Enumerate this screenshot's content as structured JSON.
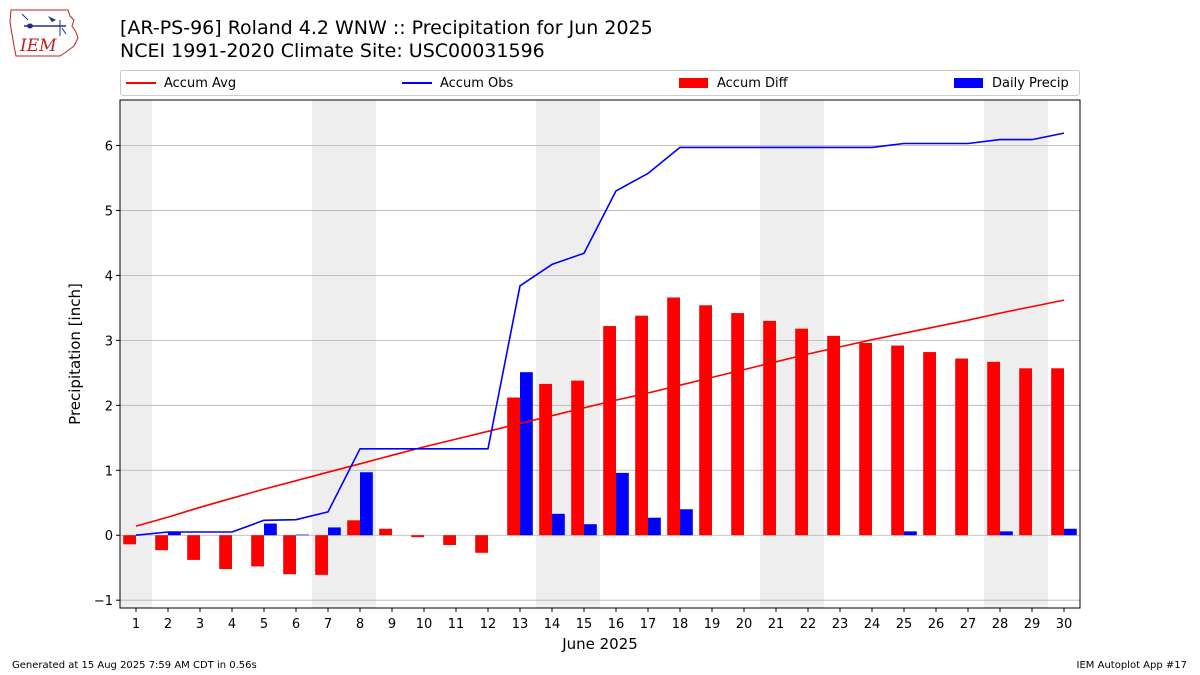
{
  "logo": {
    "text": "IEM"
  },
  "header": {
    "title_line1": "[AR-PS-96] Roland 4.2 WNW :: Precipitation for Jun 2025",
    "title_line2": "NCEI 1991-2020 Climate Site: USC00031596"
  },
  "footer": {
    "generated": "Generated at 15 Aug 2025 7:59 AM CDT in 0.56s",
    "app": "IEM Autoplot App #17"
  },
  "colors": {
    "accum_avg": "#ff0000",
    "accum_obs": "#0000ff",
    "accum_diff": "#ff0000",
    "daily_precip": "#0000ff",
    "weekend_band": "#eeeeee",
    "grid": "#b0b0b0"
  },
  "chart_data": {
    "type": "bar",
    "xlabel": "June 2025",
    "ylabel": "Precipitation [inch]",
    "ylim": [
      -1.12,
      6.7
    ],
    "yticks": [
      -1,
      0,
      1,
      2,
      3,
      4,
      5,
      6
    ],
    "grid": "horizontal",
    "legend_position": "top",
    "weekend_days": [
      1,
      7,
      8,
      14,
      15,
      21,
      22,
      28,
      29
    ],
    "categories": [
      "1",
      "2",
      "3",
      "4",
      "5",
      "6",
      "7",
      "8",
      "9",
      "10",
      "11",
      "12",
      "13",
      "14",
      "15",
      "16",
      "17",
      "18",
      "19",
      "20",
      "21",
      "22",
      "23",
      "24",
      "25",
      "26",
      "27",
      "28",
      "29",
      "30"
    ],
    "series": [
      {
        "name": "Accum Avg",
        "kind": "line",
        "values": [
          0.14,
          0.28,
          0.43,
          0.57,
          0.71,
          0.84,
          0.97,
          1.1,
          1.23,
          1.36,
          1.48,
          1.6,
          1.72,
          1.84,
          1.96,
          2.08,
          2.19,
          2.31,
          2.43,
          2.55,
          2.67,
          2.79,
          2.9,
          3.01,
          3.11,
          3.21,
          3.31,
          3.42,
          3.52,
          3.62
        ]
      },
      {
        "name": "Accum Obs",
        "kind": "line",
        "values": [
          0.0,
          0.05,
          0.05,
          0.05,
          0.23,
          0.24,
          0.36,
          1.33,
          1.33,
          1.33,
          1.33,
          1.33,
          3.84,
          4.17,
          4.34,
          5.3,
          5.57,
          5.97,
          5.97,
          5.97,
          5.97,
          5.97,
          5.97,
          5.97,
          6.03,
          6.03,
          6.03,
          6.09,
          6.09,
          6.19
        ]
      },
      {
        "name": "Accum Diff",
        "kind": "bar",
        "values": [
          -0.14,
          -0.23,
          -0.38,
          -0.52,
          -0.48,
          -0.6,
          -0.61,
          0.23,
          0.1,
          -0.03,
          -0.15,
          -0.27,
          2.12,
          2.33,
          2.38,
          3.22,
          3.38,
          3.66,
          3.54,
          3.42,
          3.3,
          3.18,
          3.07,
          2.96,
          2.92,
          2.82,
          2.72,
          2.67,
          2.57,
          2.57
        ]
      },
      {
        "name": "Daily Precip",
        "kind": "bar",
        "values": [
          0.0,
          0.05,
          0.0,
          0.0,
          0.18,
          0.01,
          0.12,
          0.97,
          0.0,
          0.0,
          0.0,
          0.0,
          2.51,
          0.33,
          0.17,
          0.96,
          0.27,
          0.4,
          0.0,
          0.0,
          0.0,
          0.0,
          0.0,
          0.0,
          0.06,
          0.0,
          0.0,
          0.06,
          0.0,
          0.1
        ]
      }
    ]
  }
}
